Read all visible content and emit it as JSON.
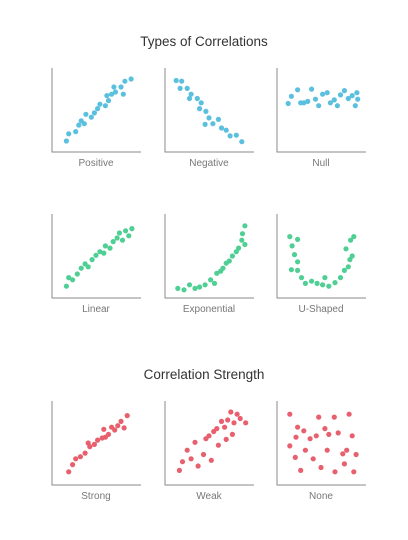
{
  "sections": [
    {
      "title": "Types of Correlations",
      "color": "#5bc0de",
      "panels": [
        {
          "label": "Positive",
          "points": [
            [
              0.12,
              0.07
            ],
            [
              0.15,
              0.17
            ],
            [
              0.24,
              0.2
            ],
            [
              0.28,
              0.29
            ],
            [
              0.31,
              0.35
            ],
            [
              0.35,
              0.31
            ],
            [
              0.37,
              0.44
            ],
            [
              0.44,
              0.4
            ],
            [
              0.48,
              0.46
            ],
            [
              0.52,
              0.52
            ],
            [
              0.55,
              0.58
            ],
            [
              0.62,
              0.56
            ],
            [
              0.66,
              0.63
            ],
            [
              0.64,
              0.7
            ],
            [
              0.7,
              0.72
            ],
            [
              0.73,
              0.82
            ],
            [
              0.75,
              0.75
            ],
            [
              0.82,
              0.82
            ],
            [
              0.85,
              0.72
            ],
            [
              0.87,
              0.9
            ],
            [
              0.95,
              0.93
            ]
          ]
        },
        {
          "label": "Negative",
          "points": [
            [
              0.08,
              0.91
            ],
            [
              0.15,
              0.9
            ],
            [
              0.13,
              0.8
            ],
            [
              0.22,
              0.8
            ],
            [
              0.27,
              0.72
            ],
            [
              0.25,
              0.66
            ],
            [
              0.35,
              0.66
            ],
            [
              0.4,
              0.6
            ],
            [
              0.38,
              0.52
            ],
            [
              0.46,
              0.48
            ],
            [
              0.5,
              0.39
            ],
            [
              0.45,
              0.3
            ],
            [
              0.55,
              0.31
            ],
            [
              0.62,
              0.37
            ],
            [
              0.66,
              0.25
            ],
            [
              0.72,
              0.22
            ],
            [
              0.77,
              0.14
            ],
            [
              0.85,
              0.15
            ],
            [
              0.92,
              0.06
            ]
          ]
        },
        {
          "label": "Null",
          "points": [
            [
              0.08,
              0.59
            ],
            [
              0.12,
              0.69
            ],
            [
              0.2,
              0.78
            ],
            [
              0.24,
              0.6
            ],
            [
              0.28,
              0.6
            ],
            [
              0.33,
              0.62
            ],
            [
              0.38,
              0.79
            ],
            [
              0.43,
              0.65
            ],
            [
              0.47,
              0.56
            ],
            [
              0.52,
              0.72
            ],
            [
              0.58,
              0.74
            ],
            [
              0.62,
              0.6
            ],
            [
              0.67,
              0.64
            ],
            [
              0.71,
              0.56
            ],
            [
              0.75,
              0.71
            ],
            [
              0.8,
              0.77
            ],
            [
              0.85,
              0.66
            ],
            [
              0.9,
              0.7
            ],
            [
              0.94,
              0.56
            ],
            [
              0.96,
              0.74
            ],
            [
              0.97,
              0.65
            ]
          ]
        }
      ]
    },
    {
      "title": "",
      "color": "#4fcf94",
      "panels": [
        {
          "label": "Linear",
          "points": [
            [
              0.12,
              0.08
            ],
            [
              0.15,
              0.2
            ],
            [
              0.2,
              0.17
            ],
            [
              0.26,
              0.25
            ],
            [
              0.31,
              0.33
            ],
            [
              0.36,
              0.39
            ],
            [
              0.4,
              0.35
            ],
            [
              0.45,
              0.45
            ],
            [
              0.5,
              0.51
            ],
            [
              0.55,
              0.56
            ],
            [
              0.6,
              0.54
            ],
            [
              0.62,
              0.64
            ],
            [
              0.68,
              0.61
            ],
            [
              0.72,
              0.7
            ],
            [
              0.77,
              0.75
            ],
            [
              0.8,
              0.82
            ],
            [
              0.84,
              0.72
            ],
            [
              0.88,
              0.85
            ],
            [
              0.92,
              0.78
            ],
            [
              0.96,
              0.88
            ]
          ]
        },
        {
          "label": "Exponential",
          "points": [
            [
              0.1,
              0.05
            ],
            [
              0.18,
              0.03
            ],
            [
              0.25,
              0.1
            ],
            [
              0.32,
              0.05
            ],
            [
              0.38,
              0.07
            ],
            [
              0.45,
              0.1
            ],
            [
              0.52,
              0.17
            ],
            [
              0.57,
              0.12
            ],
            [
              0.6,
              0.26
            ],
            [
              0.65,
              0.29
            ],
            [
              0.68,
              0.33
            ],
            [
              0.72,
              0.4
            ],
            [
              0.76,
              0.43
            ],
            [
              0.8,
              0.5
            ],
            [
              0.85,
              0.56
            ],
            [
              0.88,
              0.61
            ],
            [
              0.92,
              0.72
            ],
            [
              0.96,
              0.66
            ],
            [
              0.93,
              0.81
            ],
            [
              0.96,
              0.92
            ]
          ]
        },
        {
          "label": "U-Shaped",
          "points": [
            [
              0.1,
              0.77
            ],
            [
              0.13,
              0.64
            ],
            [
              0.2,
              0.73
            ],
            [
              0.16,
              0.52
            ],
            [
              0.2,
              0.42
            ],
            [
              0.12,
              0.31
            ],
            [
              0.2,
              0.3
            ],
            [
              0.25,
              0.2
            ],
            [
              0.3,
              0.12
            ],
            [
              0.38,
              0.15
            ],
            [
              0.45,
              0.12
            ],
            [
              0.52,
              0.1
            ],
            [
              0.55,
              0.2
            ],
            [
              0.6,
              0.08
            ],
            [
              0.68,
              0.13
            ],
            [
              0.75,
              0.2
            ],
            [
              0.8,
              0.3
            ],
            [
              0.85,
              0.35
            ],
            [
              0.87,
              0.45
            ],
            [
              0.9,
              0.5
            ],
            [
              0.82,
              0.6
            ],
            [
              0.92,
              0.77
            ],
            [
              0.88,
              0.72
            ]
          ]
        }
      ]
    },
    {
      "title": "Correlation Strength",
      "color": "#e8606e",
      "panels": [
        {
          "label": "Strong",
          "points": [
            [
              0.15,
              0.1
            ],
            [
              0.2,
              0.2
            ],
            [
              0.24,
              0.28
            ],
            [
              0.3,
              0.31
            ],
            [
              0.36,
              0.36
            ],
            [
              0.42,
              0.45
            ],
            [
              0.4,
              0.5
            ],
            [
              0.48,
              0.48
            ],
            [
              0.52,
              0.54
            ],
            [
              0.58,
              0.57
            ],
            [
              0.62,
              0.58
            ],
            [
              0.6,
              0.69
            ],
            [
              0.66,
              0.62
            ],
            [
              0.7,
              0.72
            ],
            [
              0.74,
              0.68
            ],
            [
              0.78,
              0.74
            ],
            [
              0.82,
              0.8
            ],
            [
              0.86,
              0.71
            ],
            [
              0.9,
              0.88
            ]
          ]
        },
        {
          "label": "Weak",
          "points": [
            [
              0.12,
              0.12
            ],
            [
              0.16,
              0.24
            ],
            [
              0.22,
              0.4
            ],
            [
              0.27,
              0.28
            ],
            [
              0.32,
              0.51
            ],
            [
              0.36,
              0.18
            ],
            [
              0.43,
              0.34
            ],
            [
              0.46,
              0.56
            ],
            [
              0.5,
              0.6
            ],
            [
              0.53,
              0.26
            ],
            [
              0.56,
              0.66
            ],
            [
              0.6,
              0.7
            ],
            [
              0.62,
              0.47
            ],
            [
              0.66,
              0.8
            ],
            [
              0.7,
              0.72
            ],
            [
              0.74,
              0.82
            ],
            [
              0.78,
              0.93
            ],
            [
              0.82,
              0.78
            ],
            [
              0.86,
              0.9
            ],
            [
              0.9,
              0.84
            ],
            [
              0.8,
              0.62
            ],
            [
              0.97,
              0.78
            ],
            [
              0.72,
              0.55
            ]
          ]
        },
        {
          "label": "None",
          "points": [
            [
              0.1,
              0.9
            ],
            [
              0.1,
              0.46
            ],
            [
              0.17,
              0.3
            ],
            [
              0.18,
              0.58
            ],
            [
              0.2,
              0.72
            ],
            [
              0.24,
              0.12
            ],
            [
              0.28,
              0.67
            ],
            [
              0.3,
              0.4
            ],
            [
              0.36,
              0.56
            ],
            [
              0.4,
              0.28
            ],
            [
              0.44,
              0.6
            ],
            [
              0.47,
              0.86
            ],
            [
              0.5,
              0.16
            ],
            [
              0.55,
              0.7
            ],
            [
              0.58,
              0.4
            ],
            [
              0.6,
              0.62
            ],
            [
              0.67,
              0.86
            ],
            [
              0.68,
              0.1
            ],
            [
              0.72,
              0.64
            ],
            [
              0.78,
              0.35
            ],
            [
              0.8,
              0.21
            ],
            [
              0.83,
              0.4
            ],
            [
              0.86,
              0.9
            ],
            [
              0.9,
              0.6
            ],
            [
              0.92,
              0.1
            ],
            [
              0.95,
              0.34
            ]
          ]
        }
      ]
    }
  ]
}
